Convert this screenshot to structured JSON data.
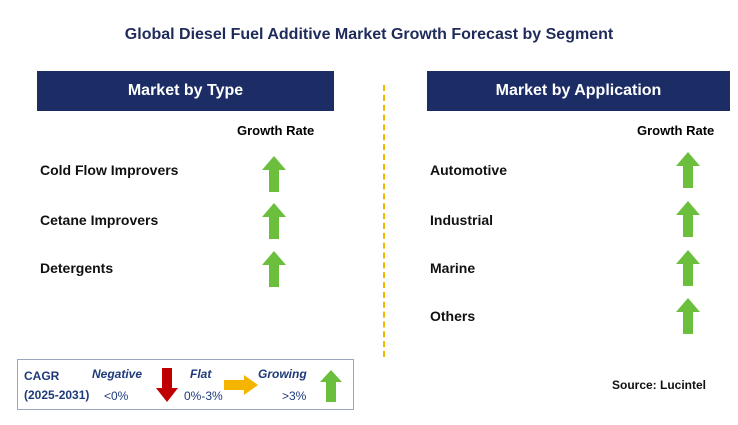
{
  "title": "Global Diesel Fuel Additive Market Growth Forecast by Segment",
  "left": {
    "header": "Market by Type",
    "growth_rate_label": "Growth Rate",
    "items": [
      {
        "label": "Cold Flow Improvers",
        "trend": "growing"
      },
      {
        "label": "Cetane Improvers",
        "trend": "growing"
      },
      {
        "label": "Detergents",
        "trend": "growing"
      }
    ]
  },
  "right": {
    "header": "Market by Application",
    "growth_rate_label": "Growth Rate",
    "items": [
      {
        "label": "Automotive",
        "trend": "growing"
      },
      {
        "label": "Industrial",
        "trend": "growing"
      },
      {
        "label": "Marine",
        "trend": "growing"
      },
      {
        "label": "Others",
        "trend": "growing"
      }
    ]
  },
  "legend": {
    "cagr": "CAGR",
    "period": "(2025-2031)",
    "negative_label": "Negative",
    "negative_value": "<0%",
    "flat_label": "Flat",
    "flat_value": "0%-3%",
    "growing_label": "Growing",
    "growing_value": ">3%"
  },
  "source": "Source: Lucintel",
  "colors": {
    "banner": "#1c2d66",
    "growing": "#6cbf3c",
    "negative": "#c00000",
    "flat": "#f4b400",
    "divider": "#f2b600"
  }
}
